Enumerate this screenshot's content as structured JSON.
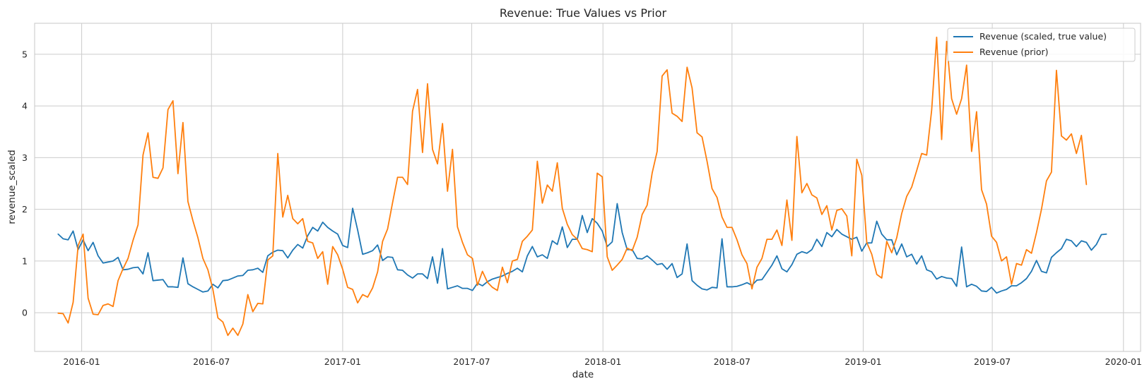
{
  "chart_data": {
    "type": "line",
    "title": "Revenue: True Values vs Prior",
    "xlabel": "date",
    "ylabel": "revenue_scaled",
    "xlim": [
      "2015-10-27",
      "2020-01-25"
    ],
    "ylim": [
      -0.75,
      5.6
    ],
    "x_ticks": [
      "2016-01",
      "2016-07",
      "2017-01",
      "2017-07",
      "2018-01",
      "2018-07",
      "2019-01",
      "2019-07",
      "2020-01"
    ],
    "y_ticks": [
      0,
      1,
      2,
      3,
      4,
      5
    ],
    "grid": true,
    "legend_position": "top-right",
    "x_start": "2015-11-29",
    "x_step_days": 7,
    "series": [
      {
        "name": "Revenue (scaled, true value)",
        "color": "#1f77b4",
        "values": [
          1.52,
          1.43,
          1.41,
          1.58,
          1.22,
          1.41,
          1.2,
          1.36,
          1.1,
          0.96,
          0.98,
          1.0,
          1.07,
          0.83,
          0.84,
          0.87,
          0.88,
          0.75,
          1.16,
          0.62,
          0.63,
          0.64,
          0.5,
          0.5,
          0.49,
          1.06,
          0.56,
          0.5,
          0.45,
          0.4,
          0.42,
          0.55,
          0.48,
          0.62,
          0.63,
          0.67,
          0.71,
          0.72,
          0.82,
          0.83,
          0.86,
          0.78,
          1.1,
          1.17,
          1.21,
          1.2,
          1.06,
          1.21,
          1.32,
          1.25,
          1.49,
          1.65,
          1.58,
          1.75,
          1.65,
          1.58,
          1.52,
          1.3,
          1.26,
          2.02,
          1.6,
          1.13,
          1.16,
          1.2,
          1.31,
          1.01,
          1.08,
          1.07,
          0.83,
          0.82,
          0.73,
          0.67,
          0.75,
          0.75,
          0.66,
          1.08,
          0.57,
          1.24,
          0.46,
          0.49,
          0.52,
          0.47,
          0.47,
          0.43,
          0.57,
          0.52,
          0.6,
          0.65,
          0.68,
          0.71,
          0.76,
          0.8,
          0.86,
          0.79,
          1.1,
          1.28,
          1.08,
          1.12,
          1.05,
          1.39,
          1.32,
          1.66,
          1.26,
          1.42,
          1.42,
          1.88,
          1.55,
          1.82,
          1.73,
          1.58,
          1.28,
          1.37,
          2.11,
          1.55,
          1.22,
          1.22,
          1.05,
          1.04,
          1.1,
          1.02,
          0.93,
          0.95,
          0.84,
          0.95,
          0.68,
          0.75,
          1.33,
          0.62,
          0.53,
          0.46,
          0.44,
          0.49,
          0.48,
          1.43,
          0.5,
          0.5,
          0.51,
          0.54,
          0.58,
          0.53,
          0.63,
          0.64,
          0.78,
          0.92,
          1.1,
          0.85,
          0.79,
          0.93,
          1.13,
          1.18,
          1.15,
          1.22,
          1.42,
          1.28,
          1.55,
          1.47,
          1.61,
          1.52,
          1.47,
          1.42,
          1.46,
          1.19,
          1.35,
          1.35,
          1.77,
          1.52,
          1.41,
          1.41,
          1.12,
          1.33,
          1.08,
          1.13,
          0.94,
          1.1,
          0.83,
          0.79,
          0.65,
          0.7,
          0.67,
          0.66,
          0.51,
          1.27,
          0.5,
          0.55,
          0.51,
          0.42,
          0.41,
          0.49,
          0.38,
          0.42,
          0.45,
          0.52,
          0.52,
          0.58,
          0.66,
          0.8,
          1.01,
          0.8,
          0.77,
          1.07,
          1.16,
          1.24,
          1.42,
          1.39,
          1.28,
          1.39,
          1.36,
          1.21,
          1.32,
          1.51,
          1.52
        ]
      },
      {
        "name": "Revenue (prior)",
        "color": "#ff7f0e",
        "values": [
          -0.01,
          -0.02,
          -0.2,
          0.2,
          1.3,
          1.52,
          0.28,
          -0.03,
          -0.04,
          0.14,
          0.17,
          0.12,
          0.62,
          0.85,
          1.05,
          1.4,
          1.7,
          3.05,
          3.48,
          2.62,
          2.6,
          2.8,
          3.93,
          4.1,
          2.69,
          3.68,
          2.15,
          1.78,
          1.45,
          1.05,
          0.83,
          0.45,
          -0.1,
          -0.18,
          -0.44,
          -0.3,
          -0.44,
          -0.22,
          0.35,
          0.02,
          0.18,
          0.17,
          1.02,
          1.1,
          3.08,
          1.85,
          2.27,
          1.82,
          1.72,
          1.82,
          1.38,
          1.35,
          1.05,
          1.18,
          0.55,
          1.28,
          1.12,
          0.84,
          0.49,
          0.45,
          0.19,
          0.35,
          0.3,
          0.48,
          0.79,
          1.38,
          1.62,
          2.13,
          2.62,
          2.62,
          2.48,
          3.9,
          4.32,
          3.1,
          4.43,
          3.16,
          2.88,
          3.66,
          2.35,
          3.16,
          1.66,
          1.36,
          1.12,
          1.05,
          0.53,
          0.8,
          0.59,
          0.49,
          0.43,
          0.88,
          0.58,
          1.0,
          1.03,
          1.38,
          1.48,
          1.6,
          2.93,
          2.12,
          2.47,
          2.35,
          2.9,
          2.02,
          1.71,
          1.51,
          1.42,
          1.24,
          1.22,
          1.18,
          2.7,
          2.63,
          1.08,
          0.82,
          0.92,
          1.03,
          1.25,
          1.2,
          1.46,
          1.9,
          2.08,
          2.7,
          3.12,
          4.58,
          4.7,
          3.86,
          3.8,
          3.7,
          4.75,
          4.35,
          3.48,
          3.4,
          2.93,
          2.4,
          2.23,
          1.85,
          1.65,
          1.65,
          1.41,
          1.12,
          0.95,
          0.46,
          0.88,
          1.05,
          1.42,
          1.42,
          1.6,
          1.3,
          2.18,
          1.4,
          3.41,
          2.32,
          2.5,
          2.28,
          2.22,
          1.9,
          2.07,
          1.6,
          1.98,
          2.01,
          1.87,
          1.1,
          2.97,
          2.66,
          1.36,
          1.13,
          0.74,
          0.67,
          1.38,
          1.16,
          1.45,
          1.92,
          2.25,
          2.43,
          2.75,
          3.08,
          3.05,
          3.92,
          5.33,
          3.35,
          5.25,
          4.14,
          3.84,
          4.14,
          4.79,
          3.12,
          3.89,
          2.38,
          2.1,
          1.48,
          1.36,
          1.0,
          1.08,
          0.55,
          0.95,
          0.92,
          1.22,
          1.15,
          1.55,
          2.0,
          2.55,
          2.72,
          4.69,
          3.42,
          3.34,
          3.46,
          3.08,
          3.43,
          2.48
        ]
      }
    ]
  }
}
